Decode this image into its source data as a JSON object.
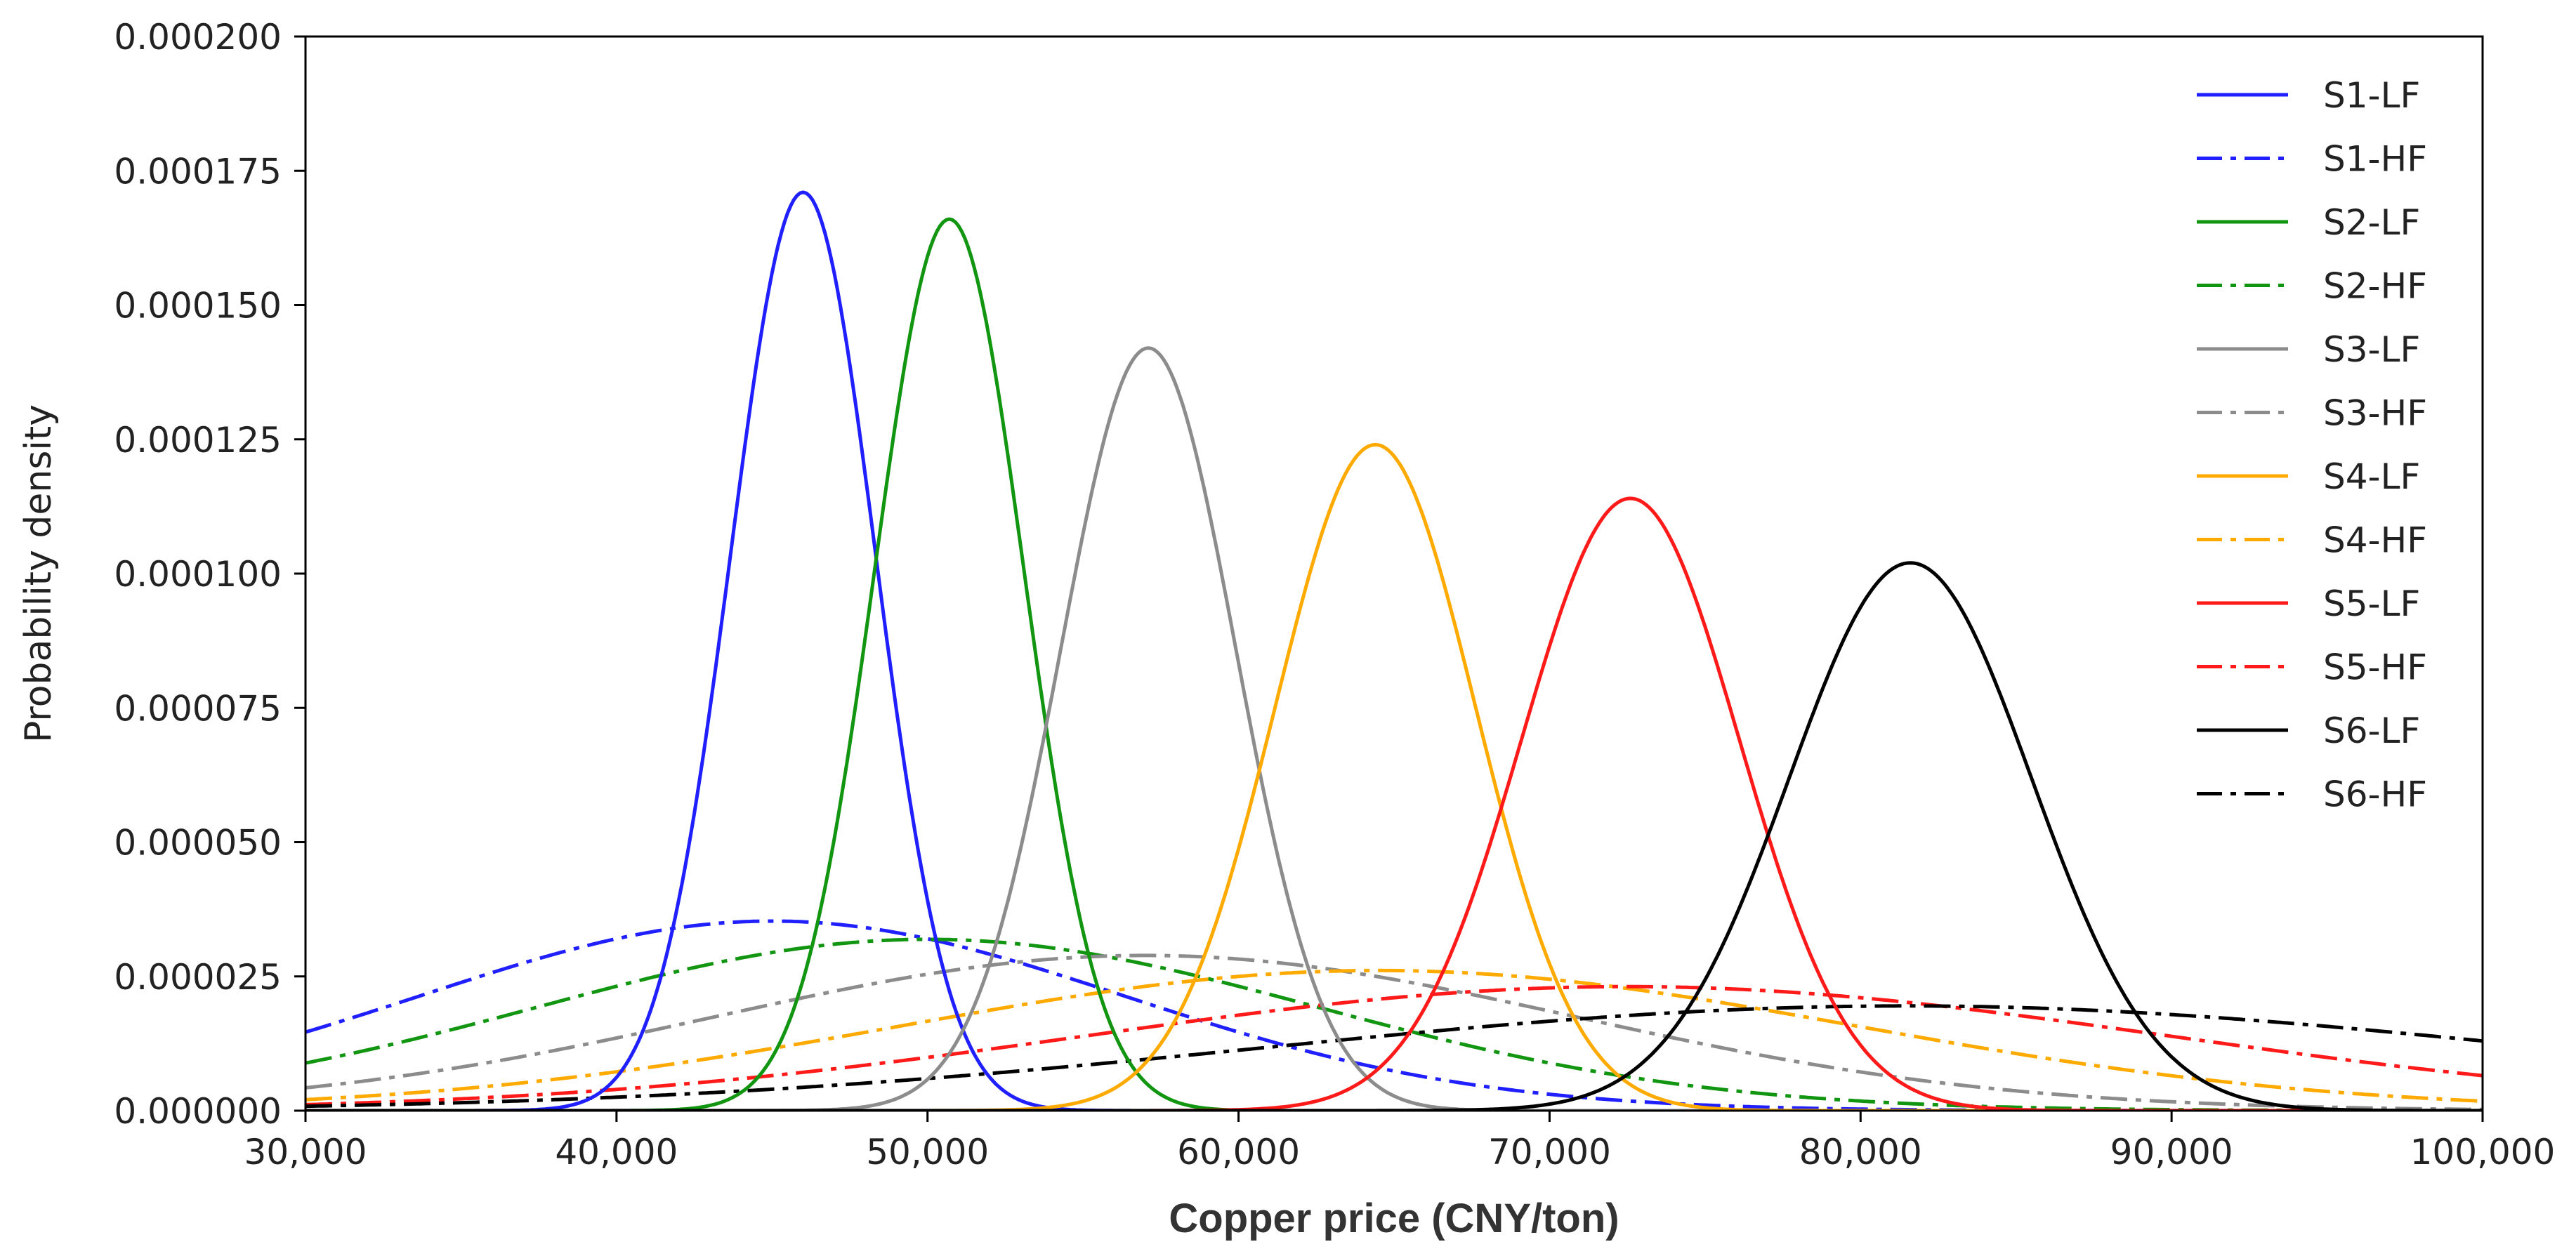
{
  "chart_data": {
    "type": "line",
    "title": "",
    "xlabel": "Copper price (CNY/ton)",
    "ylabel": "Probability density",
    "xlim": [
      30000,
      100000
    ],
    "ylim": [
      0,
      0.0002
    ],
    "grid": false,
    "legend_position": "top-right",
    "x_ticks": [
      30000,
      40000,
      50000,
      60000,
      70000,
      80000,
      90000,
      100000
    ],
    "x_tick_labels": [
      "30,000",
      "40,000",
      "50,000",
      "60,000",
      "70,000",
      "80,000",
      "90,000",
      "100,000"
    ],
    "y_ticks": [
      0,
      2.5e-05,
      5e-05,
      7.5e-05,
      0.0001,
      0.000125,
      0.00015,
      0.000175,
      0.0002
    ],
    "y_tick_labels": [
      "0.000000",
      "0.000025",
      "0.000050",
      "0.000075",
      "0.000100",
      "0.000125",
      "0.000150",
      "0.000175",
      "0.000200"
    ],
    "distribution": "normal",
    "series": [
      {
        "name": "S1-LF",
        "color": "#1f1fff",
        "style": "solid",
        "mean": 46000,
        "std": 2330,
        "peak": 0.000171
      },
      {
        "name": "S1-HF",
        "color": "#1f1fff",
        "style": "dashdot",
        "mean": 45000,
        "std": 11300,
        "peak": 3.53e-05
      },
      {
        "name": "S2-LF",
        "color": "#129612",
        "style": "solid",
        "mean": 50700,
        "std": 2400,
        "peak": 0.000166
      },
      {
        "name": "S2-HF",
        "color": "#129612",
        "style": "dashdot",
        "mean": 50000,
        "std": 12500,
        "peak": 3.19e-05
      },
      {
        "name": "S3-LF",
        "color": "#8c8c8c",
        "style": "solid",
        "mean": 57100,
        "std": 2810,
        "peak": 0.000142
      },
      {
        "name": "S3-HF",
        "color": "#8c8c8c",
        "style": "dashdot",
        "mean": 57000,
        "std": 13800,
        "peak": 2.89e-05
      },
      {
        "name": "S4-LF",
        "color": "#ffaa00",
        "style": "solid",
        "mean": 64400,
        "std": 3220,
        "peak": 0.000124
      },
      {
        "name": "S4-HF",
        "color": "#ffaa00",
        "style": "dashdot",
        "mean": 64500,
        "std": 15300,
        "peak": 2.61e-05
      },
      {
        "name": "S5-LF",
        "color": "#ff1a1a",
        "style": "solid",
        "mean": 72600,
        "std": 3500,
        "peak": 0.000114
      },
      {
        "name": "S5-HF",
        "color": "#ff1a1a",
        "style": "dashdot",
        "mean": 72500,
        "std": 17300,
        "peak": 2.31e-05
      },
      {
        "name": "S6-LF",
        "color": "#000000",
        "style": "solid",
        "mean": 81600,
        "std": 3900,
        "peak": 0.000102
      },
      {
        "name": "S6-HF",
        "color": "#000000",
        "style": "dashdot",
        "mean": 81500,
        "std": 20500,
        "peak": 1.95e-05
      }
    ]
  }
}
